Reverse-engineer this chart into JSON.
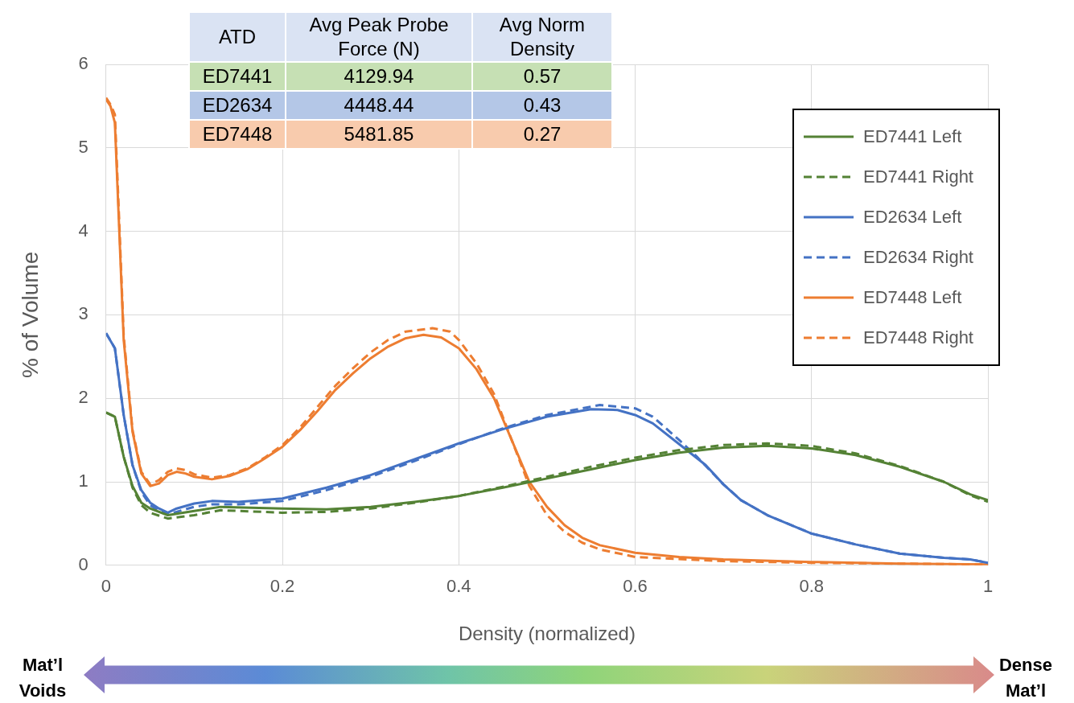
{
  "chart_data": {
    "type": "line",
    "xlabel": "Density (normalized)",
    "ylabel": "% of Volume",
    "xlim": [
      0,
      1
    ],
    "ylim": [
      0,
      6
    ],
    "xticks": [
      0,
      0.2,
      0.4,
      0.6,
      0.8,
      1
    ],
    "yticks": [
      0,
      1,
      2,
      3,
      4,
      5,
      6
    ],
    "grid": true,
    "legend": "top right",
    "marker": "none",
    "annotations": [
      "ATD",
      "Avg Peak Probe Force (N)",
      "Avg Norm Density",
      "ED7441",
      "4129.94",
      "0.57",
      "ED2634",
      "4448.44",
      "0.43",
      "ED7448",
      "5481.85",
      "0.27",
      "Mat’l Voids",
      "Dense Mat’l"
    ],
    "series": [
      {
        "name": "ED7441 Left",
        "color": "#548235",
        "line_style": "solid",
        "x": [
          0,
          0.01,
          0.02,
          0.03,
          0.04,
          0.05,
          0.07,
          0.1,
          0.13,
          0.2,
          0.25,
          0.3,
          0.35,
          0.4,
          0.45,
          0.5,
          0.55,
          0.6,
          0.65,
          0.7,
          0.75,
          0.8,
          0.85,
          0.9,
          0.95,
          0.98,
          1
        ],
        "values": [
          1.83,
          1.78,
          1.3,
          0.95,
          0.75,
          0.68,
          0.6,
          0.65,
          0.7,
          0.68,
          0.67,
          0.7,
          0.76,
          0.83,
          0.93,
          1.04,
          1.15,
          1.26,
          1.35,
          1.41,
          1.43,
          1.4,
          1.32,
          1.18,
          1.0,
          0.85,
          0.78
        ]
      },
      {
        "name": "ED7441 Right",
        "color": "#548235",
        "line_style": "dashed",
        "x": [
          0,
          0.01,
          0.02,
          0.03,
          0.04,
          0.05,
          0.07,
          0.1,
          0.13,
          0.2,
          0.25,
          0.3,
          0.35,
          0.4,
          0.45,
          0.5,
          0.55,
          0.6,
          0.65,
          0.7,
          0.75,
          0.8,
          0.85,
          0.9,
          0.95,
          0.98,
          1
        ],
        "values": [
          1.83,
          1.78,
          1.3,
          0.93,
          0.72,
          0.63,
          0.56,
          0.6,
          0.66,
          0.63,
          0.64,
          0.68,
          0.75,
          0.83,
          0.94,
          1.06,
          1.18,
          1.29,
          1.38,
          1.44,
          1.46,
          1.43,
          1.34,
          1.19,
          1.0,
          0.84,
          0.76
        ]
      },
      {
        "name": "ED2634 Left",
        "color": "#4472c4",
        "line_style": "solid",
        "x": [
          0,
          0.01,
          0.02,
          0.03,
          0.04,
          0.05,
          0.06,
          0.07,
          0.08,
          0.1,
          0.12,
          0.15,
          0.2,
          0.25,
          0.3,
          0.35,
          0.4,
          0.45,
          0.5,
          0.55,
          0.58,
          0.6,
          0.62,
          0.65,
          0.68,
          0.7,
          0.72,
          0.75,
          0.8,
          0.85,
          0.9,
          0.95,
          0.98,
          1
        ],
        "values": [
          2.78,
          2.6,
          1.8,
          1.2,
          0.9,
          0.75,
          0.68,
          0.63,
          0.68,
          0.74,
          0.77,
          0.76,
          0.8,
          0.93,
          1.08,
          1.27,
          1.46,
          1.63,
          1.78,
          1.87,
          1.86,
          1.8,
          1.7,
          1.45,
          1.2,
          0.97,
          0.78,
          0.6,
          0.38,
          0.25,
          0.14,
          0.09,
          0.07,
          0.03
        ]
      },
      {
        "name": "ED2634 Right",
        "color": "#4472c4",
        "line_style": "dashed",
        "x": [
          0,
          0.01,
          0.02,
          0.03,
          0.04,
          0.05,
          0.06,
          0.07,
          0.08,
          0.1,
          0.12,
          0.15,
          0.2,
          0.25,
          0.3,
          0.35,
          0.4,
          0.45,
          0.5,
          0.56,
          0.6,
          0.62,
          0.65,
          0.67,
          0.7,
          0.72,
          0.75,
          0.8,
          0.85,
          0.9,
          0.95,
          0.98,
          1
        ],
        "values": [
          2.78,
          2.6,
          1.8,
          1.2,
          0.88,
          0.72,
          0.65,
          0.61,
          0.64,
          0.7,
          0.73,
          0.73,
          0.77,
          0.9,
          1.06,
          1.25,
          1.45,
          1.64,
          1.8,
          1.92,
          1.88,
          1.78,
          1.5,
          1.3,
          0.97,
          0.78,
          0.6,
          0.38,
          0.25,
          0.14,
          0.09,
          0.07,
          0.03
        ]
      },
      {
        "name": "ED7448 Left",
        "color": "#ed7d31",
        "line_style": "solid",
        "x": [
          0,
          0.005,
          0.01,
          0.015,
          0.02,
          0.03,
          0.04,
          0.05,
          0.06,
          0.07,
          0.08,
          0.09,
          0.1,
          0.12,
          0.14,
          0.16,
          0.18,
          0.2,
          0.22,
          0.24,
          0.26,
          0.28,
          0.3,
          0.32,
          0.34,
          0.36,
          0.38,
          0.4,
          0.42,
          0.44,
          0.46,
          0.48,
          0.5,
          0.52,
          0.54,
          0.56,
          0.6,
          0.65,
          0.7,
          0.8,
          0.9,
          1
        ],
        "values": [
          5.58,
          5.5,
          5.3,
          4.0,
          2.7,
          1.6,
          1.1,
          0.95,
          0.98,
          1.08,
          1.12,
          1.1,
          1.06,
          1.03,
          1.07,
          1.15,
          1.28,
          1.42,
          1.62,
          1.85,
          2.1,
          2.3,
          2.48,
          2.62,
          2.72,
          2.76,
          2.73,
          2.6,
          2.35,
          2.0,
          1.5,
          1.0,
          0.7,
          0.48,
          0.33,
          0.24,
          0.15,
          0.1,
          0.07,
          0.04,
          0.02,
          0.01
        ]
      },
      {
        "name": "ED7448 Right",
        "color": "#ed7d31",
        "line_style": "dashed",
        "x": [
          0,
          0.005,
          0.01,
          0.015,
          0.02,
          0.03,
          0.04,
          0.05,
          0.06,
          0.07,
          0.08,
          0.09,
          0.1,
          0.12,
          0.14,
          0.16,
          0.18,
          0.2,
          0.22,
          0.24,
          0.26,
          0.28,
          0.3,
          0.32,
          0.34,
          0.37,
          0.39,
          0.4,
          0.42,
          0.44,
          0.46,
          0.48,
          0.5,
          0.52,
          0.54,
          0.56,
          0.6,
          0.7,
          0.8,
          0.9,
          1
        ],
        "values": [
          5.6,
          5.52,
          5.4,
          4.1,
          2.75,
          1.62,
          1.12,
          0.97,
          1.02,
          1.12,
          1.16,
          1.14,
          1.09,
          1.05,
          1.08,
          1.16,
          1.29,
          1.44,
          1.65,
          1.9,
          2.15,
          2.36,
          2.55,
          2.7,
          2.8,
          2.84,
          2.8,
          2.7,
          2.42,
          2.05,
          1.5,
          0.95,
          0.6,
          0.4,
          0.27,
          0.19,
          0.1,
          0.05,
          0.03,
          0.02,
          0.01
        ]
      }
    ]
  }
}
